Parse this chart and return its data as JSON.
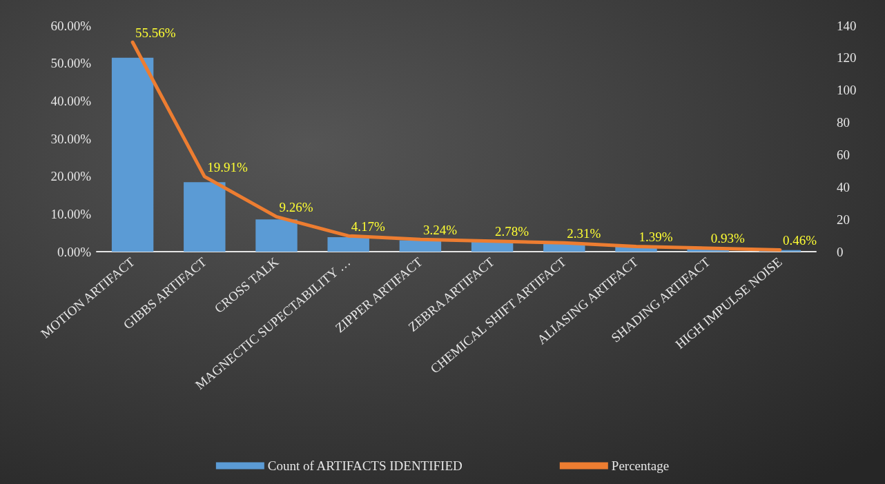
{
  "chart_data": {
    "type": "bar",
    "categories": [
      "MOTION ARTIFACT",
      "GIBBS ARTIFACT",
      "CROSS TALK",
      "MAGNECTIC SUPECTABILITY …",
      "ZIPPER ARTIFACT",
      "ZEBRA ARTIFACT",
      "CHEMICAL SHIFT ARTIFACT",
      "ALIASING ARTIFACT",
      "SHADING ARTIFACT",
      "HIGH IMPULSE NOISE"
    ],
    "series": [
      {
        "name": "Count of ARTIFACTS IDENTIFIED",
        "axis": "y2",
        "color": "#5b9bd5",
        "values": [
          120,
          43,
          20,
          9,
          7,
          6,
          5,
          3,
          2,
          1
        ]
      },
      {
        "name": "Percentage",
        "type": "line",
        "color": "#ed7d31",
        "marker": "none",
        "values": [
          55.56,
          19.91,
          9.26,
          4.17,
          3.24,
          2.78,
          2.31,
          1.39,
          0.93,
          0.46
        ],
        "value_labels": [
          "55.56%",
          "19.91%",
          "9.26%",
          "4.17%",
          "3.24%",
          "2.78%",
          "2.31%",
          "1.39%",
          "0.93%",
          "0.46%"
        ]
      }
    ],
    "ylim": [
      0,
      60
    ],
    "yticks": [
      {
        "value": 0,
        "label": "0.00%"
      },
      {
        "value": 10,
        "label": "10.00%"
      },
      {
        "value": 20,
        "label": "20.00%"
      },
      {
        "value": 30,
        "label": "30.00%"
      },
      {
        "value": 40,
        "label": "40.00%"
      },
      {
        "value": 50,
        "label": "50.00%"
      },
      {
        "value": 60,
        "label": "60.00%"
      }
    ],
    "y2lim": [
      0,
      140
    ],
    "y2ticks": [
      0,
      20,
      40,
      60,
      80,
      100,
      120,
      140
    ],
    "grid": false,
    "legend": "bottom"
  }
}
